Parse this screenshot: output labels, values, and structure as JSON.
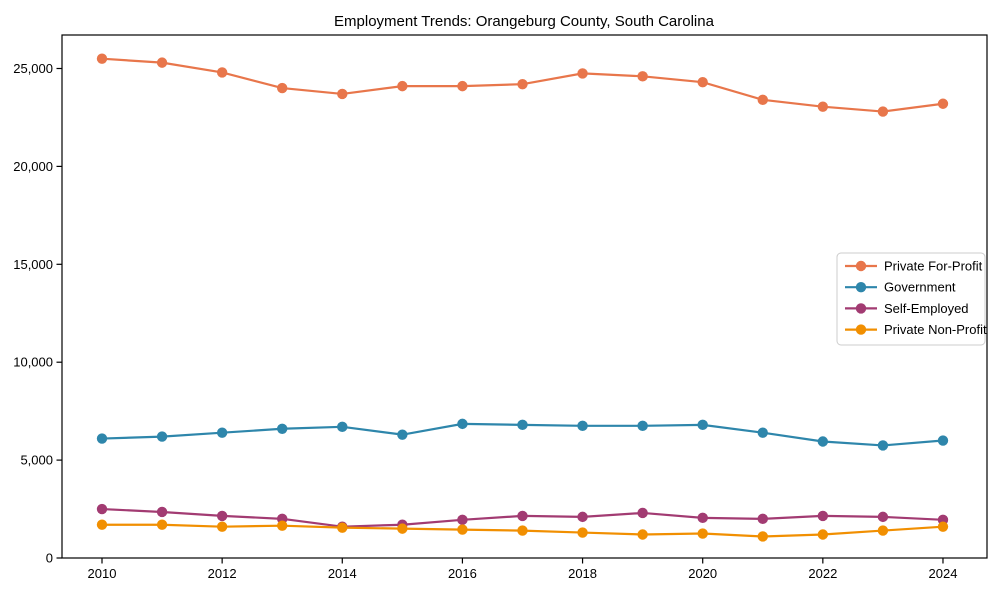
{
  "figure": {
    "title": "Employment Trends: Orangeburg County, South Carolina"
  },
  "chart_data": {
    "type": "line",
    "title": "Employment Trends: Orangeburg County, South Carolina",
    "xlabel": "",
    "ylabel": "",
    "x": [
      2010,
      2011,
      2012,
      2013,
      2014,
      2015,
      2016,
      2017,
      2018,
      2019,
      2020,
      2021,
      2022,
      2023,
      2024
    ],
    "series": [
      {
        "name": "Private For-Profit",
        "color": "#E8764B",
        "values": [
          25500,
          25300,
          24800,
          24000,
          23700,
          24100,
          24100,
          24200,
          24750,
          24600,
          24300,
          23400,
          23050,
          22800,
          23200
        ]
      },
      {
        "name": "Government",
        "color": "#2E86AB",
        "values": [
          6100,
          6200,
          6400,
          6600,
          6700,
          6300,
          6850,
          6800,
          6750,
          6750,
          6800,
          6400,
          5950,
          5750,
          6000
        ]
      },
      {
        "name": "Self-Employed",
        "color": "#A23B72",
        "values": [
          2500,
          2350,
          2150,
          2000,
          1600,
          1700,
          1950,
          2150,
          2100,
          2300,
          2050,
          2000,
          2150,
          2100,
          1950
        ]
      },
      {
        "name": "Private Non-Profit",
        "color": "#F18F01",
        "values": [
          1700,
          1700,
          1600,
          1650,
          1550,
          1500,
          1450,
          1400,
          1300,
          1200,
          1250,
          1100,
          1200,
          1400,
          1600
        ]
      }
    ],
    "xticks": [
      2010,
      2012,
      2014,
      2016,
      2018,
      2020,
      2022,
      2024
    ],
    "yticks": [
      0,
      5000,
      10000,
      15000,
      20000,
      25000
    ],
    "ytick_labels": [
      "0",
      "5,000",
      "10,000",
      "15,000",
      "20,000",
      "25,000"
    ],
    "ylim": [
      0,
      26700
    ],
    "xlim": [
      2009.33,
      2024.73
    ],
    "grid": false,
    "marker": "circle",
    "legend_position": "center right"
  }
}
